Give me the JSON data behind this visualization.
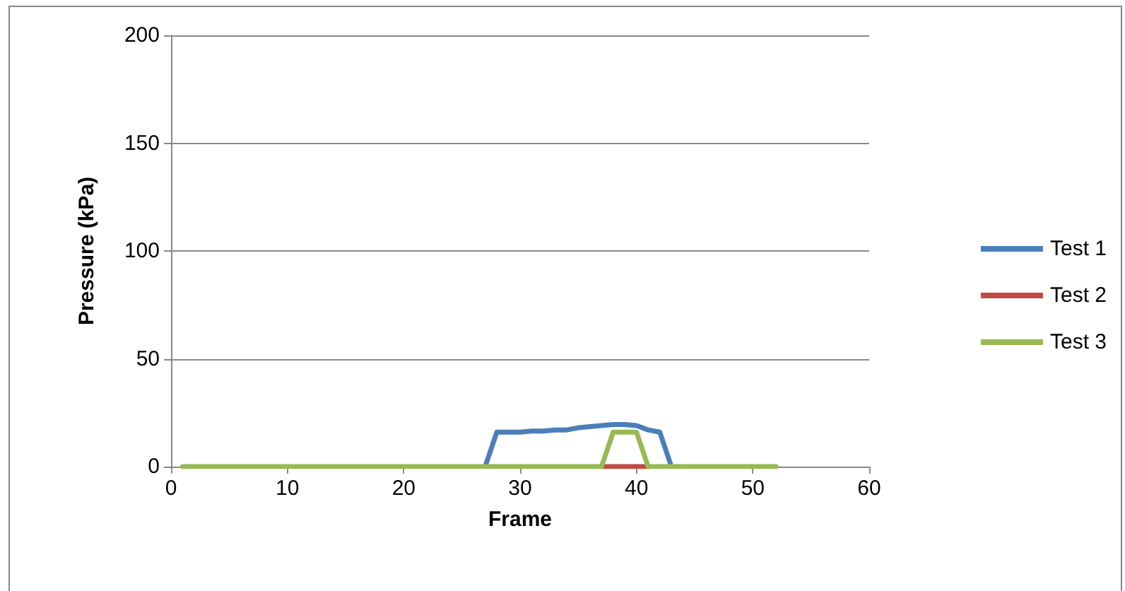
{
  "chart_data": {
    "type": "line",
    "xlabel": "Frame",
    "ylabel": "Pressure (kPa)",
    "x": [
      1,
      2,
      3,
      4,
      5,
      6,
      7,
      8,
      9,
      10,
      11,
      12,
      13,
      14,
      15,
      16,
      17,
      18,
      19,
      20,
      21,
      22,
      23,
      24,
      25,
      26,
      27,
      28,
      29,
      30,
      31,
      32,
      33,
      34,
      35,
      36,
      37,
      38,
      39,
      40,
      41,
      42,
      43,
      44,
      45,
      46,
      47,
      48,
      49,
      50,
      51,
      52
    ],
    "series": [
      {
        "name": "Test 1",
        "color": "#4a7ebb",
        "values": [
          null,
          null,
          null,
          null,
          null,
          null,
          null,
          null,
          null,
          null,
          null,
          null,
          null,
          null,
          null,
          null,
          null,
          null,
          null,
          null,
          null,
          null,
          null,
          null,
          null,
          null,
          0,
          16,
          16,
          16,
          16.5,
          16.5,
          17,
          17,
          18,
          18.5,
          19,
          19.5,
          19.5,
          19,
          17,
          16,
          0,
          null,
          null,
          null,
          null,
          null,
          null,
          null,
          null,
          null
        ]
      },
      {
        "name": "Test 2",
        "color": "#be4b48",
        "values": [
          null,
          null,
          null,
          null,
          null,
          null,
          null,
          null,
          null,
          null,
          null,
          null,
          null,
          null,
          null,
          null,
          null,
          null,
          null,
          null,
          null,
          null,
          null,
          null,
          null,
          null,
          null,
          null,
          null,
          null,
          null,
          null,
          null,
          null,
          null,
          null,
          0,
          0,
          0,
          0,
          0,
          null,
          null,
          null,
          null,
          null,
          null,
          null,
          null,
          null,
          null,
          null
        ]
      },
      {
        "name": "Test 3",
        "color": "#98b954",
        "values": [
          0,
          0,
          0,
          0,
          0,
          0,
          0,
          0,
          0,
          0,
          0,
          0,
          0,
          0,
          0,
          0,
          0,
          0,
          0,
          0,
          0,
          0,
          0,
          0,
          0,
          0,
          0,
          0,
          0,
          0,
          0,
          0,
          0,
          0,
          0,
          0,
          0,
          16,
          16,
          16,
          0,
          0,
          0,
          0,
          0,
          0,
          0,
          0,
          0,
          0,
          0,
          0
        ]
      }
    ],
    "xlim": [
      0,
      60
    ],
    "xticks": [
      0,
      10,
      20,
      30,
      40,
      50,
      60
    ],
    "ylim": [
      0,
      200
    ],
    "yticks": [
      0,
      50,
      100,
      150,
      200
    ],
    "grid": "y",
    "legend": "right",
    "marker": "none",
    "line_style": "solid"
  }
}
